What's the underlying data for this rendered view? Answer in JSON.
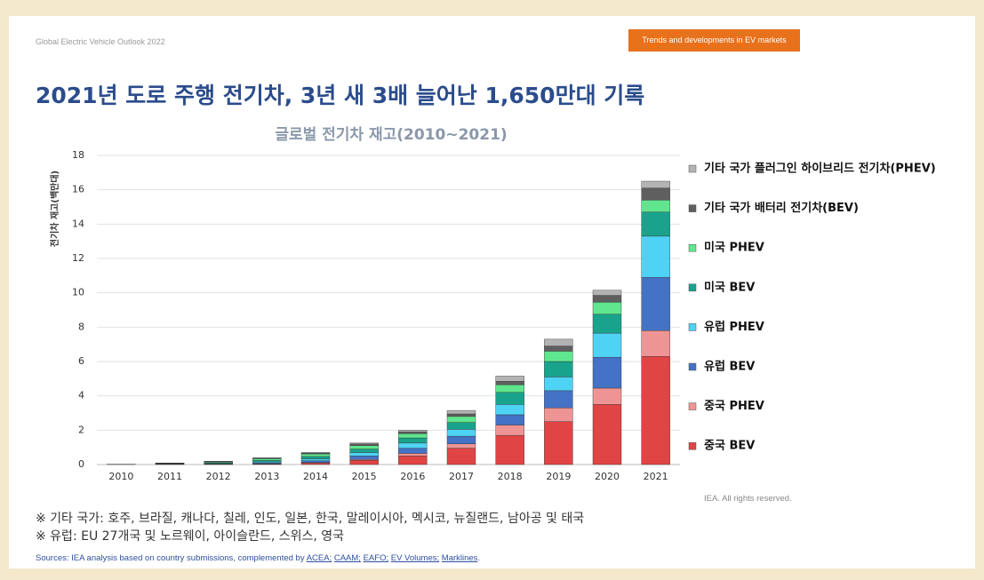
{
  "header": {
    "publication": "Global Electric Vehicle Outlook 2022",
    "tag": "Trends and developments in EV markets",
    "headline": "2021년 도로 주행 전기차, 3년 새 3배 늘어난 1,650만대 기록"
  },
  "chart_data": {
    "type": "bar",
    "stacked": true,
    "title": "글로벌 전기차 재고(2010~2021)",
    "y_label": "전기차 재고(백만대)",
    "categories": [
      "2010",
      "2011",
      "2012",
      "2013",
      "2014",
      "2015",
      "2016",
      "2017",
      "2018",
      "2019",
      "2020",
      "2021"
    ],
    "series": [
      {
        "name": "중국 BEV",
        "color": "#e04444",
        "values": [
          0.01,
          0.01,
          0.02,
          0.03,
          0.1,
          0.25,
          0.5,
          0.95,
          1.7,
          2.5,
          3.5,
          6.3
        ]
      },
      {
        "name": "중국 PHEV",
        "color": "#ef9494",
        "values": [
          0,
          0,
          0,
          0.01,
          0.02,
          0.05,
          0.15,
          0.25,
          0.6,
          0.8,
          0.95,
          1.5
        ]
      },
      {
        "name": "유럽 BEV",
        "color": "#4472c4",
        "values": [
          0,
          0.01,
          0.02,
          0.05,
          0.1,
          0.2,
          0.3,
          0.45,
          0.6,
          1.0,
          1.8,
          3.1
        ]
      },
      {
        "name": "유럽 PHEV",
        "color": "#4fd3f4",
        "values": [
          0,
          0.01,
          0.02,
          0.05,
          0.1,
          0.2,
          0.3,
          0.4,
          0.6,
          0.8,
          1.4,
          2.4
        ]
      },
      {
        "name": "미국 BEV",
        "color": "#19a38c",
        "values": [
          0,
          0.02,
          0.05,
          0.1,
          0.15,
          0.2,
          0.3,
          0.4,
          0.7,
          0.9,
          1.1,
          1.4
        ]
      },
      {
        "name": "미국 PHEV",
        "color": "#5fe68e",
        "values": [
          0,
          0.02,
          0.05,
          0.1,
          0.15,
          0.2,
          0.25,
          0.35,
          0.45,
          0.6,
          0.7,
          0.7
        ]
      },
      {
        "name": "기타 국가 배터리 전기차(BEV)",
        "color": "#5f5f5f",
        "values": [
          0.01,
          0.01,
          0.02,
          0.03,
          0.05,
          0.1,
          0.1,
          0.15,
          0.2,
          0.3,
          0.4,
          0.7
        ]
      },
      {
        "name": "기타 국가 플러그인 하이브리드 전기차(PHEV)",
        "color": "#b3b3b3",
        "values": [
          0,
          0.01,
          0.01,
          0.02,
          0.03,
          0.05,
          0.1,
          0.2,
          0.3,
          0.4,
          0.3,
          0.4
        ]
      }
    ],
    "ylim": [
      0,
      18
    ],
    "yticks": [
      0,
      2,
      4,
      6,
      8,
      10,
      12,
      14,
      16,
      18
    ],
    "grid": true
  },
  "credit": "IEA. All rights reserved.",
  "notes": [
    "※ 기타 국가: 호주, 브라질, 캐나다, 칠레, 인도, 일본, 한국, 말레이시아, 멕시코, 뉴질랜드, 남아공 및 태국",
    "※ 유럽: EU 27개국 및 노르웨이, 아이슬란드, 스위스, 영국"
  ],
  "sources": {
    "prefix": "Sources: IEA analysis based on country submissions, complemented by",
    "links": [
      "ACEA;",
      "CAAM;",
      "EAFO;",
      "EV Volumes;",
      "Marklines"
    ],
    "suffix": "."
  }
}
